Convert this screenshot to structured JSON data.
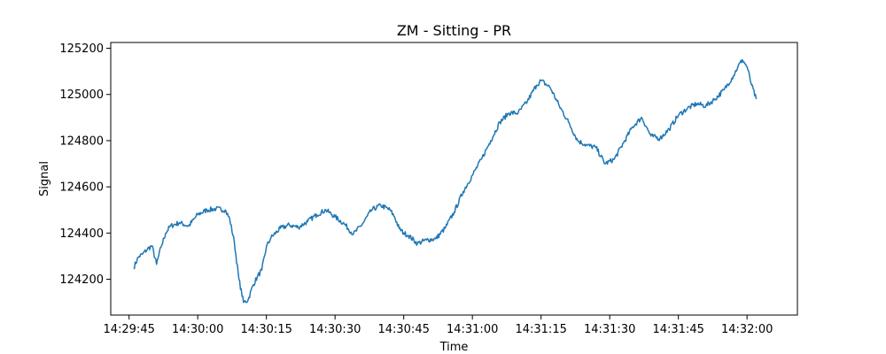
{
  "chart_data": {
    "type": "line",
    "title": "ZM - Sitting - PR",
    "xlabel": "Time",
    "ylabel": "Signal",
    "line_color": "#1f77b4",
    "grid": false,
    "legend": "none",
    "xlim": [
      "14:29:41",
      "14:32:11"
    ],
    "ylim": [
      124045,
      125225
    ],
    "xticks": [
      "14:29:45",
      "14:30:00",
      "14:30:15",
      "14:30:30",
      "14:30:45",
      "14:31:00",
      "14:31:15",
      "14:31:30",
      "14:31:45",
      "14:32:00"
    ],
    "yticks": [
      124200,
      124400,
      124600,
      124800,
      125000,
      125200
    ],
    "series": [
      {
        "x": [
          "14:29:46",
          "14:29:47",
          "14:29:48",
          "14:29:49",
          "14:29:50",
          "14:29:51",
          "14:29:52",
          "14:29:53",
          "14:29:54",
          "14:29:56",
          "14:29:58",
          "14:30:00",
          "14:30:02",
          "14:30:04",
          "14:30:06",
          "14:30:07",
          "14:30:08",
          "14:30:09",
          "14:30:10",
          "14:30:11",
          "14:30:12",
          "14:30:13",
          "14:30:14",
          "14:30:15",
          "14:30:16",
          "14:30:18",
          "14:30:20",
          "14:30:22",
          "14:30:24",
          "14:30:26",
          "14:30:28",
          "14:30:30",
          "14:30:32",
          "14:30:34",
          "14:30:36",
          "14:30:38",
          "14:30:40",
          "14:30:42",
          "14:30:43",
          "14:30:44",
          "14:30:45",
          "14:30:46",
          "14:30:48",
          "14:30:50",
          "14:30:52",
          "14:30:54",
          "14:30:56",
          "14:30:58",
          "14:31:00",
          "14:31:02",
          "14:31:04",
          "14:31:06",
          "14:31:08",
          "14:31:10",
          "14:31:12",
          "14:31:14",
          "14:31:15",
          "14:31:17",
          "14:31:19",
          "14:31:21",
          "14:31:23",
          "14:31:25",
          "14:31:27",
          "14:31:29",
          "14:31:31",
          "14:31:33",
          "14:31:35",
          "14:31:37",
          "14:31:39",
          "14:31:41",
          "14:31:43",
          "14:31:45",
          "14:31:47",
          "14:31:49",
          "14:31:51",
          "14:31:53",
          "14:31:55",
          "14:31:57",
          "14:31:58",
          "14:31:59",
          "14:32:00",
          "14:32:01",
          "14:32:02"
        ],
        "y": [
          124250,
          124295,
          124310,
          124330,
          124345,
          124265,
          124340,
          124400,
          124430,
          124445,
          124430,
          124480,
          124500,
          124505,
          124500,
          124460,
          124360,
          124200,
          124100,
          124110,
          124170,
          124210,
          124240,
          124340,
          124380,
          124420,
          124435,
          124425,
          124450,
          124480,
          124500,
          124470,
          124440,
          124395,
          124440,
          124500,
          124520,
          124500,
          124470,
          124420,
          124400,
          124390,
          124355,
          124370,
          124375,
          124420,
          124490,
          124580,
          124650,
          124720,
          124800,
          124880,
          124920,
          124920,
          124970,
          125040,
          125060,
          125030,
          124950,
          124880,
          124800,
          124780,
          124770,
          124700,
          124720,
          124790,
          124860,
          124900,
          124820,
          124810,
          124850,
          124910,
          124940,
          124960,
          124950,
          124980,
          125020,
          125080,
          125120,
          125150,
          125120,
          125040,
          124980
        ]
      }
    ]
  }
}
